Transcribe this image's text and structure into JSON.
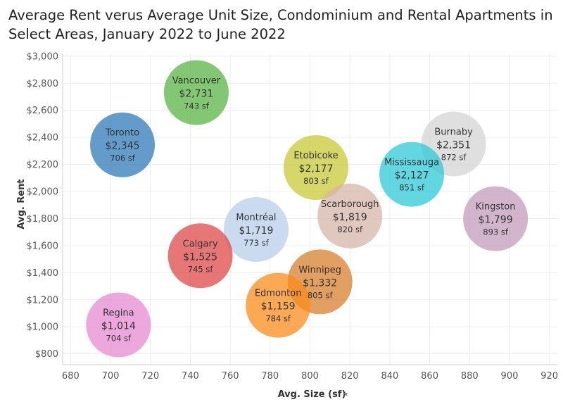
{
  "title": "Average Rent verus Average Unit Size, Condominium and Rental Apartments in Select Areas, January 2022 to June 2022",
  "chart_data": {
    "type": "scatter",
    "title": "Average Rent verus Average Unit Size, Condominium and Rental Apartments in Select Areas, January 2022 to June 2022",
    "xlabel": "Avg. Size (sf)",
    "ylabel": "Avg. Rent",
    "xlim": [
      676,
      924
    ],
    "ylim": [
      720,
      3020
    ],
    "xticks": [
      680,
      700,
      720,
      740,
      760,
      780,
      800,
      820,
      840,
      860,
      880,
      900,
      920
    ],
    "yticks": [
      800,
      1000,
      1200,
      1400,
      1600,
      1800,
      2000,
      2200,
      2400,
      2600,
      2800,
      3000
    ],
    "ytick_labels": [
      "$800",
      "$1,000",
      "$1,200",
      "$1,400",
      "$1,600",
      "$1,800",
      "$2,000",
      "$2,200",
      "$2,400",
      "$2,600",
      "$2,800",
      "$3,000"
    ],
    "grid": true,
    "points": [
      {
        "name": "Vancouver",
        "size": 743,
        "rent": 2731,
        "rent_label": "$2,731",
        "size_label": "743 sf",
        "color": "#59b446"
      },
      {
        "name": "Toronto",
        "size": 706,
        "rent": 2345,
        "rent_label": "$2,345",
        "size_label": "706 sf",
        "color": "#2f7ab9"
      },
      {
        "name": "Burnaby",
        "size": 872,
        "rent": 2351,
        "rent_label": "$2,351",
        "size_label": "872 sf",
        "color": "#d4d4d4"
      },
      {
        "name": "Etobicoke",
        "size": 803,
        "rent": 2177,
        "rent_label": "$2,177",
        "size_label": "803 sf",
        "color": "#c9c836"
      },
      {
        "name": "Mississauga",
        "size": 851,
        "rent": 2127,
        "rent_label": "$2,127",
        "size_label": "851 sf",
        "color": "#2ec9d8"
      },
      {
        "name": "Scarborough",
        "size": 820,
        "rent": 1819,
        "rent_label": "$1,819",
        "size_label": "820 sf",
        "color": "#d7b5aa"
      },
      {
        "name": "Kingston",
        "size": 893,
        "rent": 1799,
        "rent_label": "$1,799",
        "size_label": "893 sf",
        "color": "#c39bbb"
      },
      {
        "name": "Montréal",
        "size": 773,
        "rent": 1719,
        "rent_label": "$1,719",
        "size_label": "773 sf",
        "color": "#b8cfeb"
      },
      {
        "name": "Calgary",
        "size": 745,
        "rent": 1525,
        "rent_label": "$1,525",
        "size_label": "745 sf",
        "color": "#df4848"
      },
      {
        "name": "Winnipeg",
        "size": 805,
        "rent": 1332,
        "rent_label": "$1,332",
        "size_label": "805 sf",
        "color": "#d77f2e"
      },
      {
        "name": "Edmonton",
        "size": 784,
        "rent": 1159,
        "rent_label": "$1,159",
        "size_label": "784 sf",
        "color": "#fb8c1c"
      },
      {
        "name": "Regina",
        "size": 704,
        "rent": 1014,
        "rent_label": "$1,014",
        "size_label": "704 sf",
        "color": "#e58bd0"
      }
    ]
  }
}
